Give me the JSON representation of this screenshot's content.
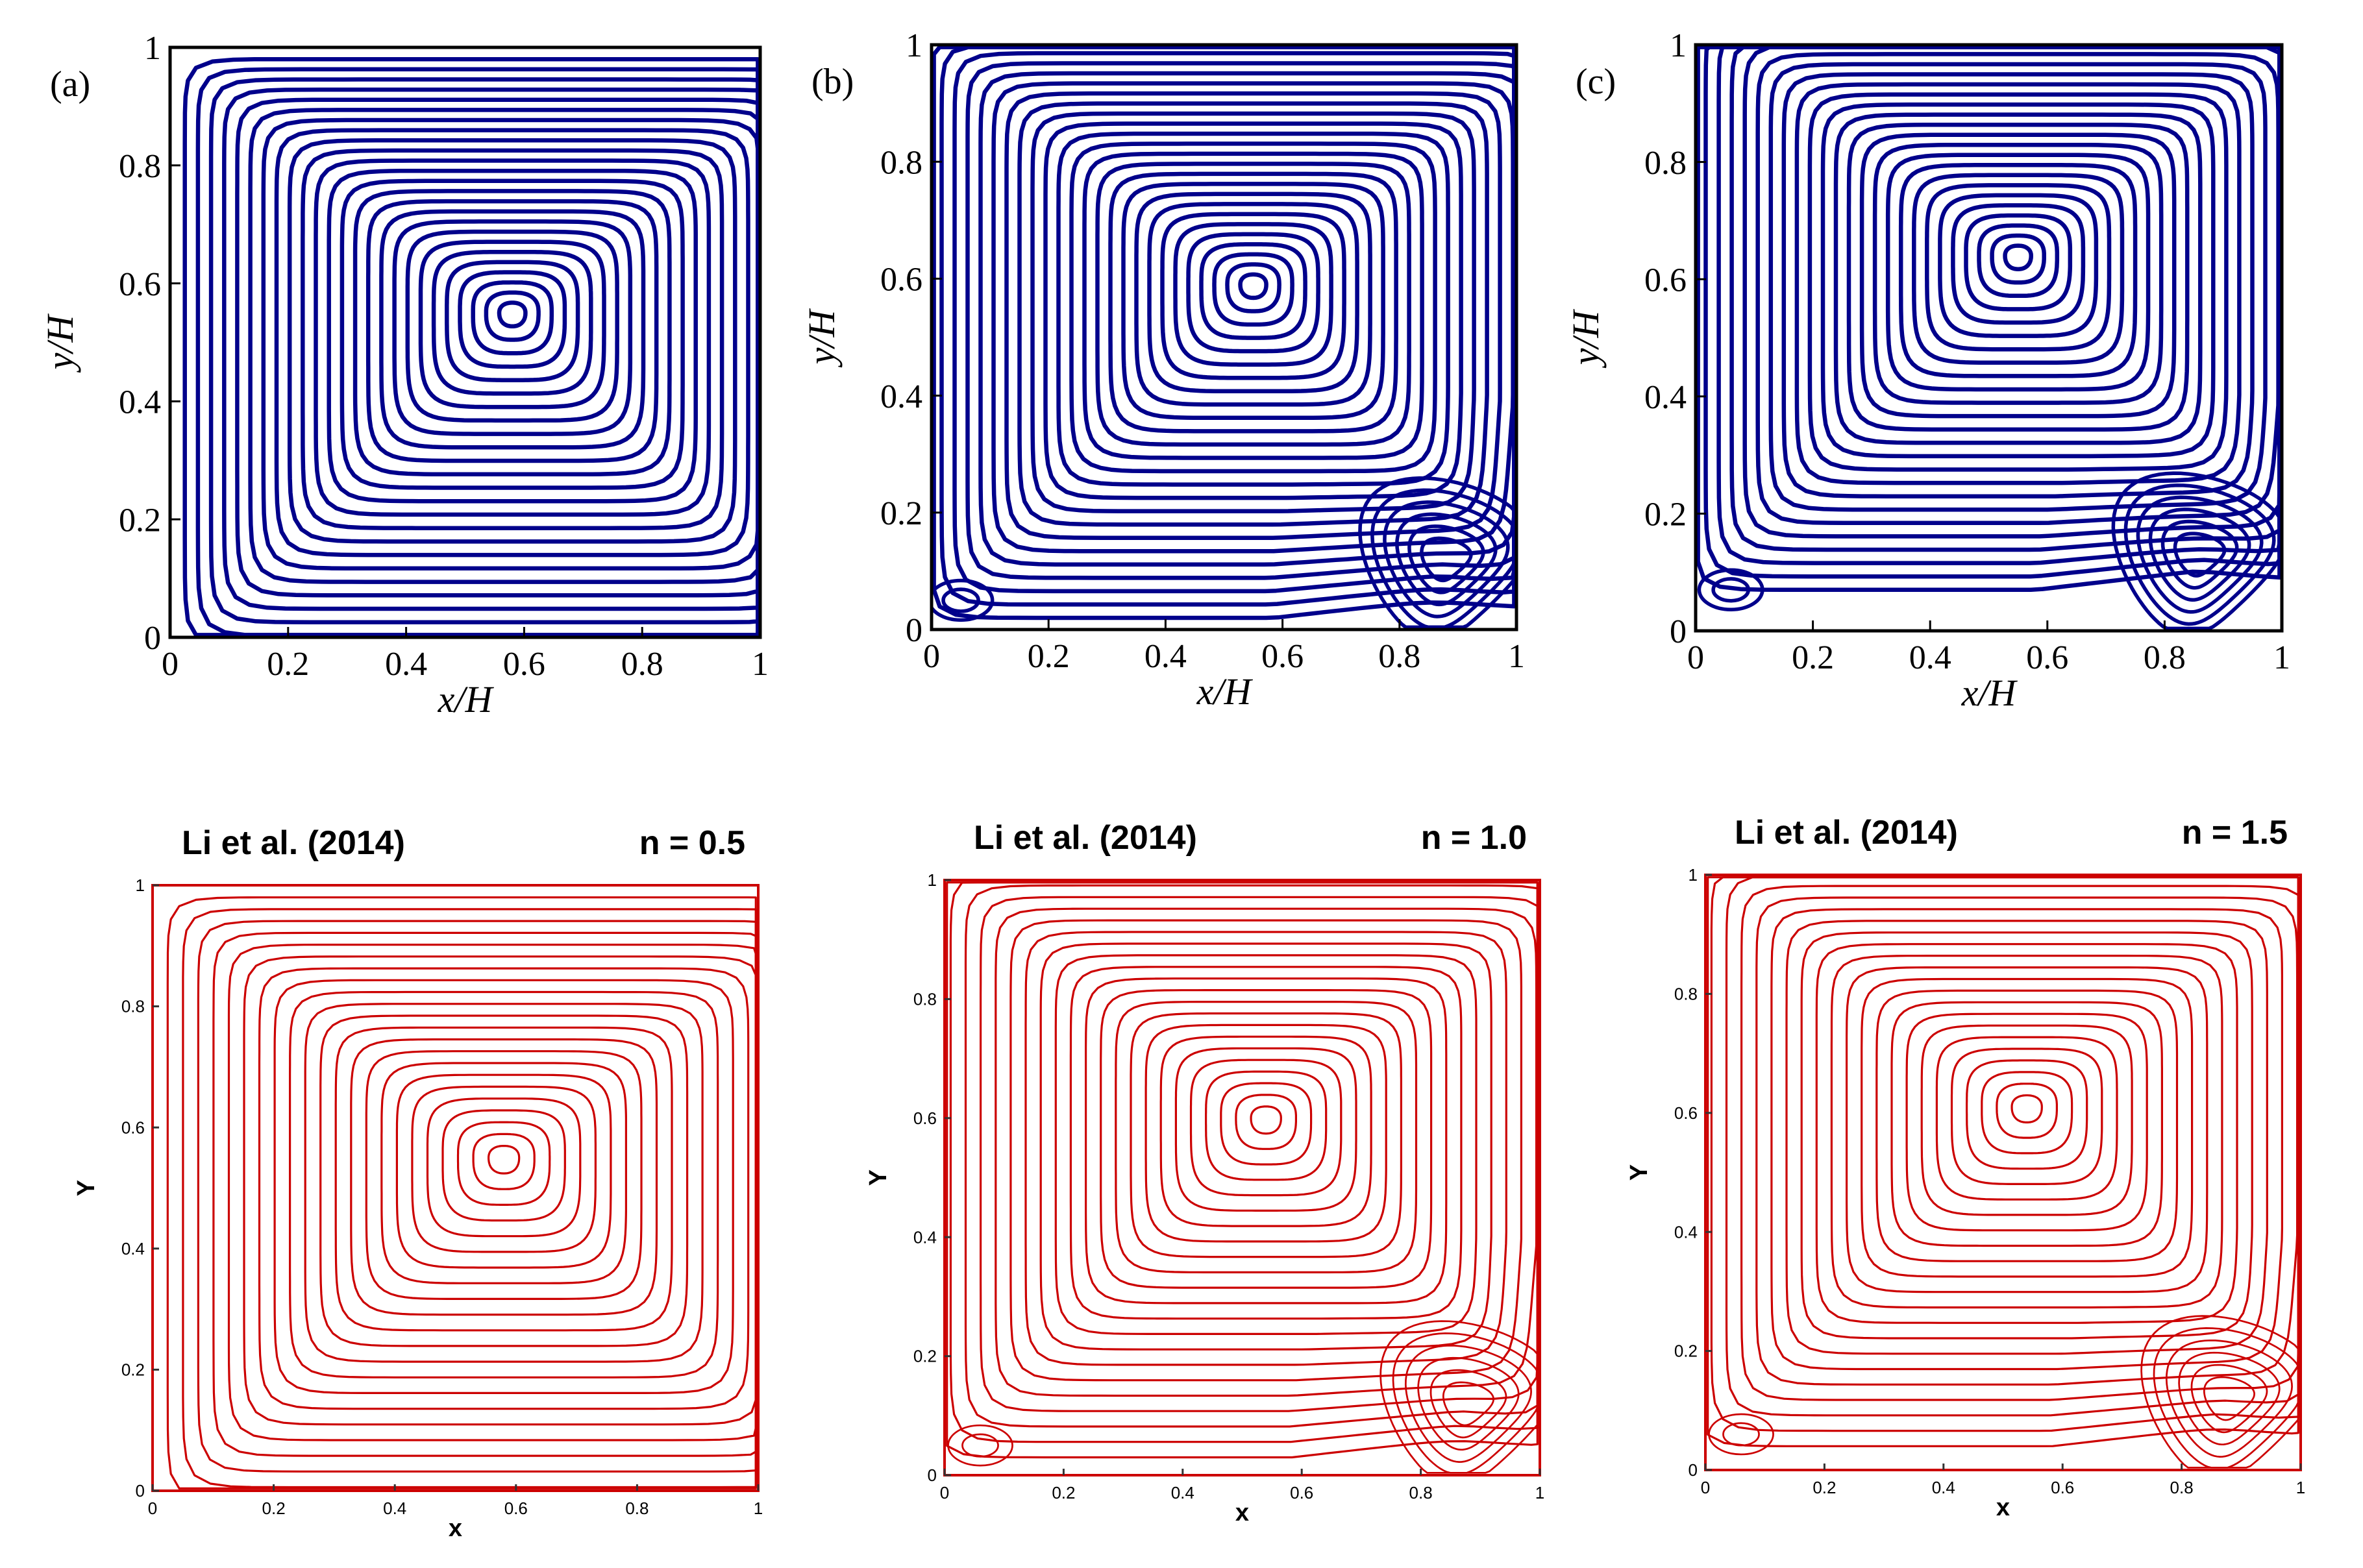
{
  "figure": {
    "description_panels": 6
  },
  "chart_data": [
    {
      "type": "contour",
      "panel_label": "(a)",
      "title": "",
      "xlabel": "x/H",
      "ylabel": "y/H",
      "xlim": [
        0,
        1
      ],
      "ylim": [
        0,
        1
      ],
      "x_ticks": [
        "0",
        "0.2",
        "0.4",
        "0.6",
        "0.8",
        "1"
      ],
      "y_ticks": [
        "0",
        "0.2",
        "0.4",
        "0.6",
        "0.8",
        "1"
      ],
      "line_color": "#00008b",
      "primary_vortex_center": [
        0.58,
        0.55
      ],
      "secondary_vortices": []
    },
    {
      "type": "contour",
      "panel_label": "(b)",
      "title": "",
      "xlabel": "x/H",
      "ylabel": "y/H",
      "xlim": [
        0,
        1
      ],
      "ylim": [
        0,
        1
      ],
      "x_ticks": [
        "0",
        "0.2",
        "0.4",
        "0.6",
        "0.8",
        "1"
      ],
      "y_ticks": [
        "0",
        "0.2",
        "0.4",
        "0.6",
        "0.8",
        "1"
      ],
      "line_color": "#00008b",
      "primary_vortex_center": [
        0.55,
        0.59
      ],
      "secondary_vortices": [
        {
          "position": "bottom-left",
          "center": [
            0.05,
            0.05
          ]
        },
        {
          "position": "bottom-right",
          "center": [
            0.88,
            0.12
          ]
        }
      ]
    },
    {
      "type": "contour",
      "panel_label": "(c)",
      "title": "",
      "xlabel": "x/H",
      "ylabel": "y/H",
      "xlim": [
        0,
        1
      ],
      "ylim": [
        0,
        1
      ],
      "x_ticks": [
        "0",
        "0.2",
        "0.4",
        "0.6",
        "0.8",
        "1"
      ],
      "y_ticks": [
        "0",
        "0.2",
        "0.4",
        "0.6",
        "0.8",
        "1"
      ],
      "line_color": "#00008b",
      "primary_vortex_center": [
        0.55,
        0.64
      ],
      "secondary_vortices": [
        {
          "position": "bottom-left",
          "center": [
            0.06,
            0.07
          ]
        },
        {
          "position": "bottom-right",
          "center": [
            0.86,
            0.13
          ]
        }
      ]
    },
    {
      "type": "contour",
      "panel_label": "",
      "title": "Li et al. (2014)",
      "annotation": "n = 0.5",
      "xlabel": "x",
      "ylabel": "Y",
      "xlim": [
        0,
        1
      ],
      "ylim": [
        0,
        1
      ],
      "x_ticks": [
        "0",
        "0.2",
        "0.4",
        "0.6",
        "0.8",
        "1"
      ],
      "y_ticks": [
        "0",
        "0.2",
        "0.4",
        "0.6",
        "0.8",
        "1"
      ],
      "line_color": "#cc0000",
      "primary_vortex_center": [
        0.58,
        0.55
      ],
      "secondary_vortices": []
    },
    {
      "type": "contour",
      "panel_label": "",
      "title": "Li et al. (2014)",
      "annotation": "n = 1.0",
      "xlabel": "x",
      "ylabel": "Y",
      "xlim": [
        0,
        1
      ],
      "ylim": [
        0,
        1
      ],
      "x_ticks": [
        "0",
        "0.2",
        "0.4",
        "0.6",
        "0.8",
        "1"
      ],
      "y_ticks": [
        "0",
        "0.2",
        "0.4",
        "0.6",
        "0.8",
        "1"
      ],
      "line_color": "#cc0000",
      "primary_vortex_center": [
        0.54,
        0.6
      ],
      "secondary_vortices": [
        {
          "position": "bottom-left",
          "center": [
            0.06,
            0.05
          ]
        },
        {
          "position": "bottom-right",
          "center": [
            0.88,
            0.12
          ]
        }
      ]
    },
    {
      "type": "contour",
      "panel_label": "",
      "title": "Li et al. (2014)",
      "annotation": "n = 1.5",
      "xlabel": "x",
      "ylabel": "Y",
      "xlim": [
        0,
        1
      ],
      "ylim": [
        0,
        1
      ],
      "x_ticks": [
        "0",
        "0.2",
        "0.4",
        "0.6",
        "0.8",
        "1"
      ],
      "y_ticks": [
        "0",
        "0.2",
        "0.4",
        "0.6",
        "0.8",
        "1"
      ],
      "line_color": "#cc0000",
      "primary_vortex_center": [
        0.54,
        0.61
      ],
      "secondary_vortices": [
        {
          "position": "bottom-left",
          "center": [
            0.06,
            0.06
          ]
        },
        {
          "position": "bottom-right",
          "center": [
            0.88,
            0.12
          ]
        }
      ]
    }
  ]
}
